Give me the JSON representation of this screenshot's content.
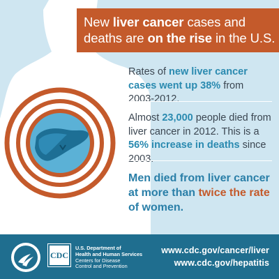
{
  "headline": {
    "line1_pre": "New ",
    "line1_bold": "liver cancer",
    "line1_post": " cases and",
    "line2_pre": "deaths are ",
    "line2_bold": "on the rise",
    "line2_post": " in the U.S."
  },
  "stats": [
    {
      "pre": "Rates of ",
      "bold": "new liver cancer cases went up 38%",
      "post": " from 2003-2012."
    },
    {
      "pre": "Almost ",
      "bold": "23,000",
      "mid": " people died from liver cancer in 2012. This is a ",
      "bold2": "56% increase in deaths",
      "post": " since 2003."
    },
    {
      "pre": "Men died from liver cancer at more than ",
      "bold": "twice the rate",
      "post": " of women."
    }
  ],
  "footer": {
    "agency_line1": "U.S. Department of",
    "agency_line2": "Health and Human Services",
    "agency_line3": "Centers for Disease",
    "agency_line4": "Control and Prevention",
    "logo_text": "CDC",
    "url1": "www.cdc.gov/cancer/liver",
    "url2": "www.cdc.gov/hepatitis"
  },
  "colors": {
    "background": "#cfe6f1",
    "accent_orange": "#c45a2b",
    "accent_blue": "#2a8ab0",
    "footer_blue": "#1f6e8f",
    "text": "#3b4651"
  },
  "icons": [
    "human-silhouette-icon",
    "liver-icon",
    "target-rings-icon",
    "hhs-eagle-icon",
    "cdc-logo-icon"
  ]
}
